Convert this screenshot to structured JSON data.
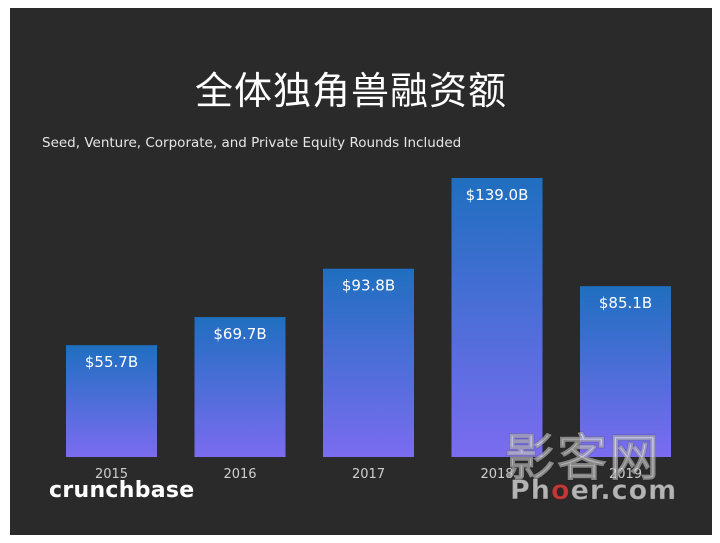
{
  "chart_data": {
    "type": "bar",
    "title": "全体独角兽融资额",
    "subtitle": "Seed, Venture, Corporate, and Private Equity Rounds Included",
    "categories": [
      "2015",
      "2016",
      "2017",
      "2018",
      "2019"
    ],
    "values": [
      55.7,
      69.7,
      93.8,
      139.0,
      85.1
    ],
    "data_labels": [
      "$55.7B",
      "$69.7B",
      "$93.8B",
      "$139.0B",
      "$85.1B"
    ],
    "xlabel": "",
    "ylabel": "",
    "ylim": [
      0,
      139.0
    ],
    "grid": false,
    "colors": {
      "bar_top": "#1f6fc0",
      "bar_bottom": "#7b6cf0",
      "background": "#2a2a2a"
    }
  },
  "branding": {
    "logo": "crunchbase"
  },
  "watermark": {
    "cn": "影客网",
    "en_prefix": "Ph",
    "en_o": "o",
    "en_suffix": "er.com"
  }
}
